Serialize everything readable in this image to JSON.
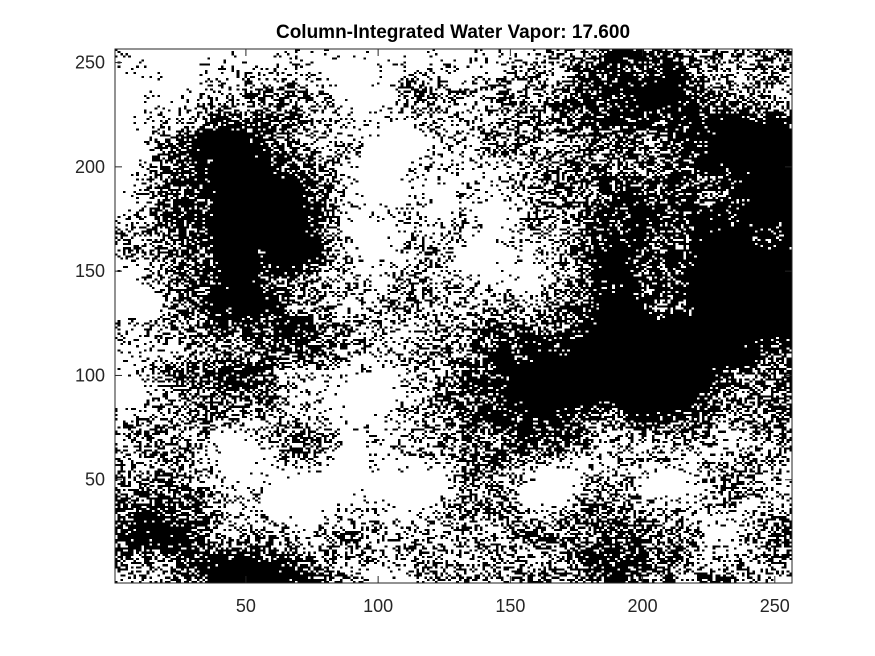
{
  "chart_data": {
    "type": "heatmap",
    "title": "Column-Integrated Water Vapor:  17.600",
    "xlabel": "",
    "ylabel": "",
    "xlim": [
      0.5,
      256.5
    ],
    "ylim": [
      0.5,
      256.5
    ],
    "grid": false,
    "legend": "none",
    "colormap": [
      "#000000",
      "#ffffff"
    ],
    "xticks": [
      50,
      100,
      150,
      200,
      250
    ],
    "yticks": [
      50,
      100,
      150,
      200,
      250
    ],
    "grid_size": [
      256,
      256
    ],
    "value_range": [
      0,
      1
    ]
  }
}
